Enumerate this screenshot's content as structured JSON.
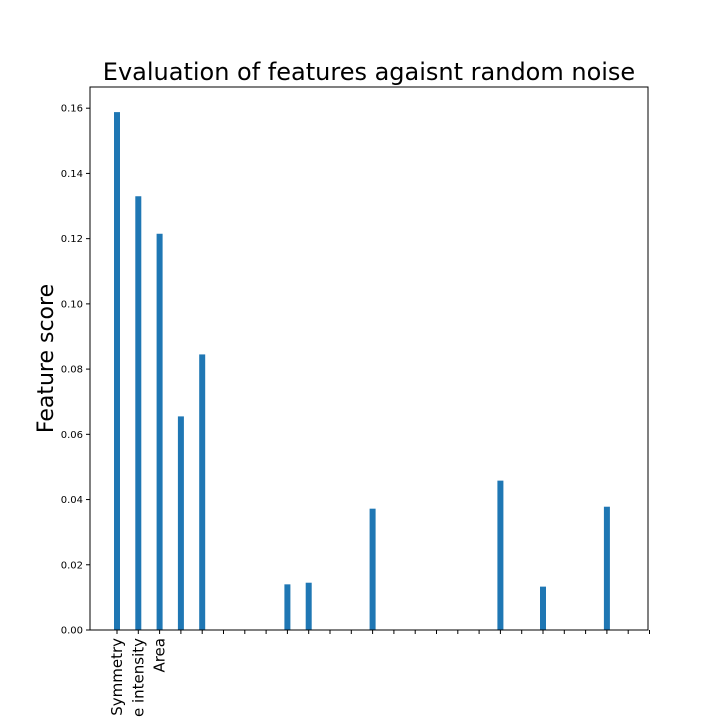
{
  "chart_data": {
    "type": "bar",
    "title": "Evaluation of features agaisnt random noise",
    "xlabel": "",
    "ylabel": "Feature score",
    "ylim": [
      0.0,
      0.1665
    ],
    "yticks": [
      0.0,
      0.02,
      0.04,
      0.06,
      0.08,
      0.1,
      0.12,
      0.14,
      0.16
    ],
    "ytick_labels": [
      "0.00",
      "0.02",
      "0.04",
      "0.06",
      "0.08",
      "0.10",
      "0.12",
      "0.14",
      "0.16"
    ],
    "bar_color": "#1f77b4",
    "grid": false,
    "legend": "none",
    "categories": [
      "Symmetry",
      "e intensity",
      "Area",
      "",
      "",
      "",
      "",
      "",
      "",
      "",
      "",
      "",
      "",
      "",
      "",
      "",
      "",
      "",
      "",
      "",
      "",
      "",
      "",
      "",
      "",
      ""
    ],
    "values": [
      0.1588,
      0.133,
      0.1215,
      0.0655,
      0.0845,
      0.0,
      0.0,
      0.0,
      0.014,
      0.0145,
      0.0,
      0.0,
      0.0372,
      0.0,
      0.0,
      0.0,
      0.0,
      0.0,
      0.0458,
      0.0,
      0.0133,
      0.0,
      0.0,
      0.0378,
      0.0,
      0.0
    ]
  }
}
